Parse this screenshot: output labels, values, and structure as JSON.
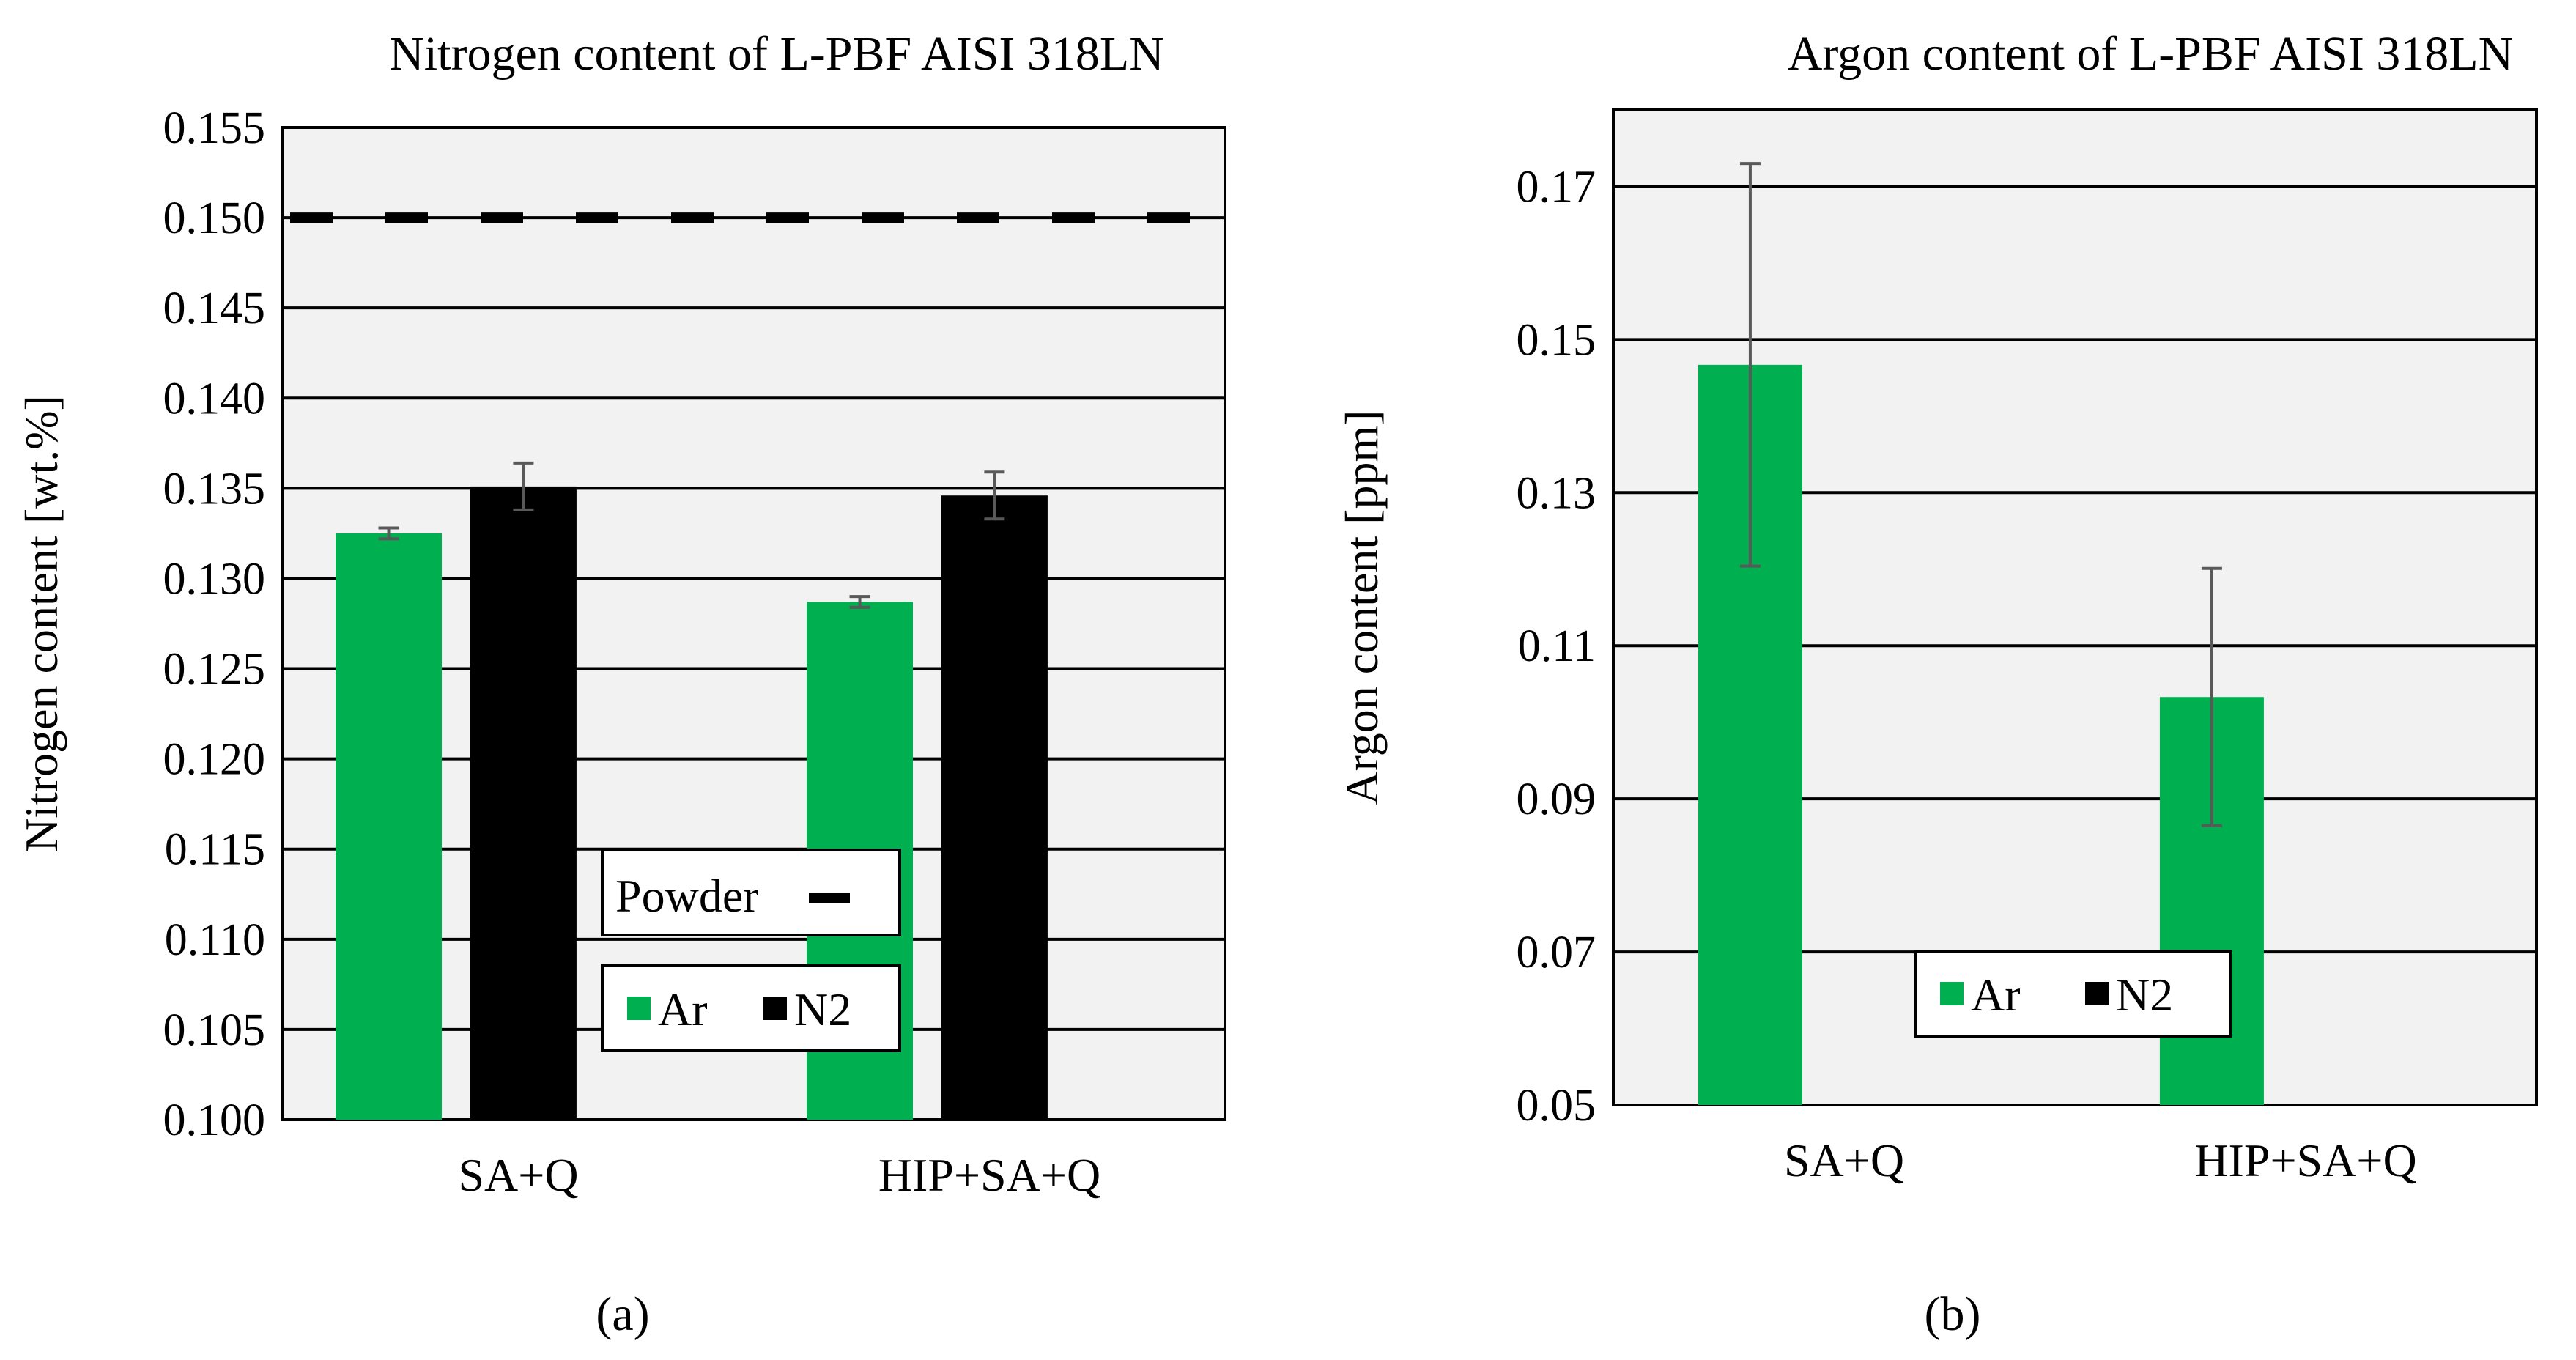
{
  "colors": {
    "ar": "#00b050",
    "n2": "#000000",
    "plot_bg": "#f2f2f2",
    "error_bar": "#595959"
  },
  "chart_data": [
    {
      "type": "bar",
      "title": "Nitrogen content of L-PBF AISI  318LN",
      "xlabel": "",
      "ylabel": "Nitrogen content [wt.%]",
      "ylim": [
        0.1,
        0.155
      ],
      "yticks": [
        "0.100",
        "0.105",
        "0.110",
        "0.115",
        "0.120",
        "0.125",
        "0.130",
        "0.135",
        "0.140",
        "0.145",
        "0.150",
        "0.155"
      ],
      "categories": [
        "SA+Q",
        "HIP+SA+Q"
      ],
      "series": [
        {
          "name": "Ar",
          "color": "#00b050",
          "values": [
            0.1325,
            0.1287
          ],
          "errors": [
            0.0003,
            0.0003
          ]
        },
        {
          "name": "N2",
          "color": "#000000",
          "values": [
            0.1351,
            0.1346
          ],
          "errors": [
            0.0013,
            0.0013
          ]
        }
      ],
      "reference_line": {
        "name": "Powder",
        "value": 0.15,
        "style": "dashed"
      },
      "grid": true,
      "legend_placement": "bottom-center",
      "sublabel": "(a)"
    },
    {
      "type": "bar",
      "title": "Argon content of L-PBF AISI  318LN",
      "xlabel": "",
      "ylabel": "Argon content [ppm]",
      "ylim": [
        0.05,
        0.18
      ],
      "yticks": [
        "0.05",
        "0.07",
        "0.09",
        "0.11",
        "0.13",
        "0.15",
        "0.17"
      ],
      "categories": [
        "SA+Q",
        "HIP+SA+Q"
      ],
      "series": [
        {
          "name": "Ar",
          "color": "#00b050",
          "values": [
            0.1467,
            0.1033
          ],
          "errors": [
            0.0263,
            0.0168
          ]
        }
      ],
      "legend_entries": [
        {
          "name": "Ar",
          "color": "#00b050"
        },
        {
          "name": "N2",
          "color": "#000000"
        }
      ],
      "grid": true,
      "legend_placement": "bottom-center",
      "sublabel": "(b)"
    }
  ]
}
